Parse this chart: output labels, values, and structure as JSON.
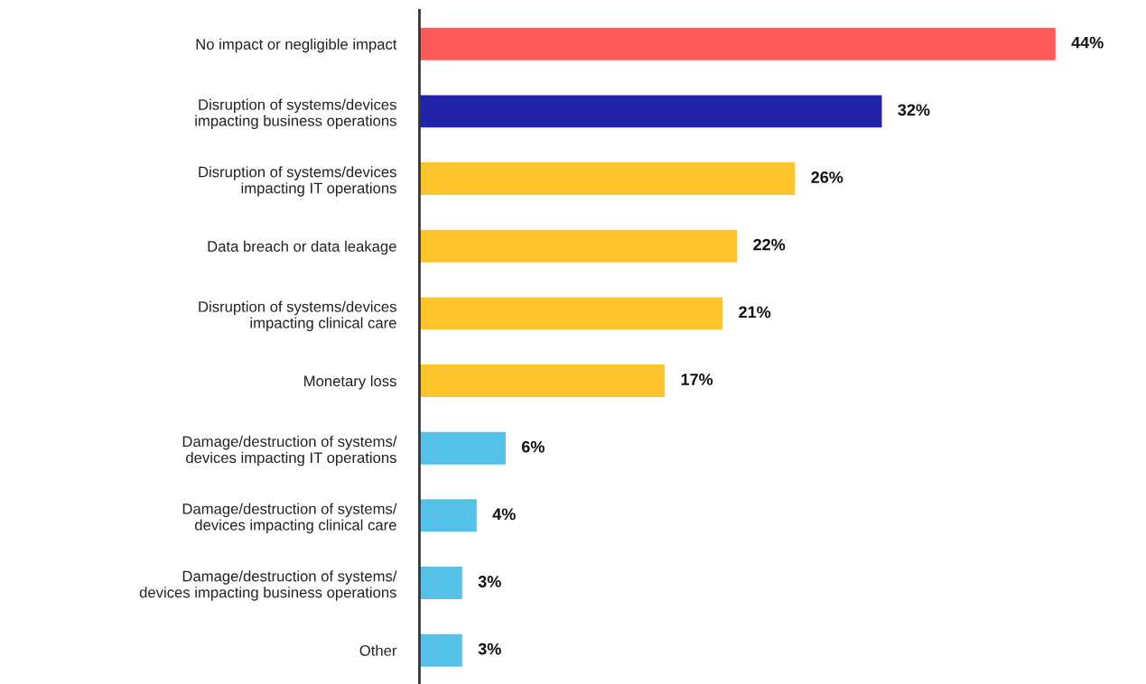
{
  "chart_data": {
    "type": "bar",
    "orientation": "horizontal",
    "categories": [
      "No impact or negligible impact",
      "Disruption of systems/devices\nimpacting business operations",
      "Disruption of systems/devices\nimpacting IT operations",
      "Data breach or data leakage",
      "Disruption of systems/devices\nimpacting clinical care",
      "Monetary loss",
      "Damage/destruction of systems/\ndevices impacting IT operations",
      "Damage/destruction of systems/\ndevices impacting clinical care",
      "Damage/destruction of systems/\ndevices impacting business operations",
      "Other"
    ],
    "values": [
      44,
      32,
      26,
      22,
      21,
      17,
      6,
      4,
      3,
      3
    ],
    "colors": [
      "#ff5a5a",
      "#2124a8",
      "#fdc32b",
      "#fdc32b",
      "#fdc32b",
      "#fdc32b",
      "#56c1e8",
      "#56c1e8",
      "#56c1e8",
      "#56c1e8"
    ],
    "value_labels": [
      "44%",
      "32%",
      "26%",
      "22%",
      "21%",
      "17%",
      "6%",
      "4%",
      "3%",
      "3%"
    ],
    "grid": false,
    "legend": false
  }
}
